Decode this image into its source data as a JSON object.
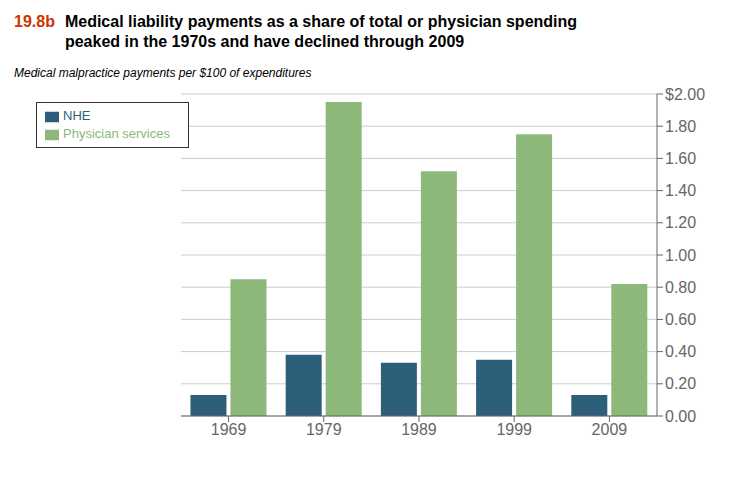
{
  "chart_data": {
    "type": "bar",
    "title": "Medical liability payments as a share of total or physician spending\npeaked in the 1970s and have declined through 2009",
    "subtitle": "Medical malpractice payments per $100 of expenditures",
    "annotations": [
      {
        "text": "19.8b",
        "color": "#CC3300"
      }
    ],
    "categories": [
      "1969",
      "1979",
      "1989",
      "1999",
      "2009"
    ],
    "series": [
      {
        "name": "NHE",
        "color": "#2E5F7A",
        "values": [
          0.13,
          0.38,
          0.33,
          0.35,
          0.13
        ]
      },
      {
        "name": "Physician services",
        "color": "#8CB87A",
        "values": [
          0.85,
          1.95,
          1.52,
          1.75,
          0.82
        ]
      }
    ],
    "ylim": [
      0,
      2.0
    ],
    "yticks": [
      {
        "value": 0.0,
        "label": "0.00"
      },
      {
        "value": 0.2,
        "label": "0.20"
      },
      {
        "value": 0.4,
        "label": "0.40"
      },
      {
        "value": 0.6,
        "label": "0.60"
      },
      {
        "value": 0.8,
        "label": "0.80"
      },
      {
        "value": 1.0,
        "label": "1.00"
      },
      {
        "value": 1.2,
        "label": "1.20"
      },
      {
        "value": 1.4,
        "label": "1.40"
      },
      {
        "value": 1.6,
        "label": "1.60"
      },
      {
        "value": 1.8,
        "label": "1.80"
      },
      {
        "value": 2.0,
        "label": "$2.00"
      }
    ],
    "grid": true,
    "legend": "upper left"
  }
}
